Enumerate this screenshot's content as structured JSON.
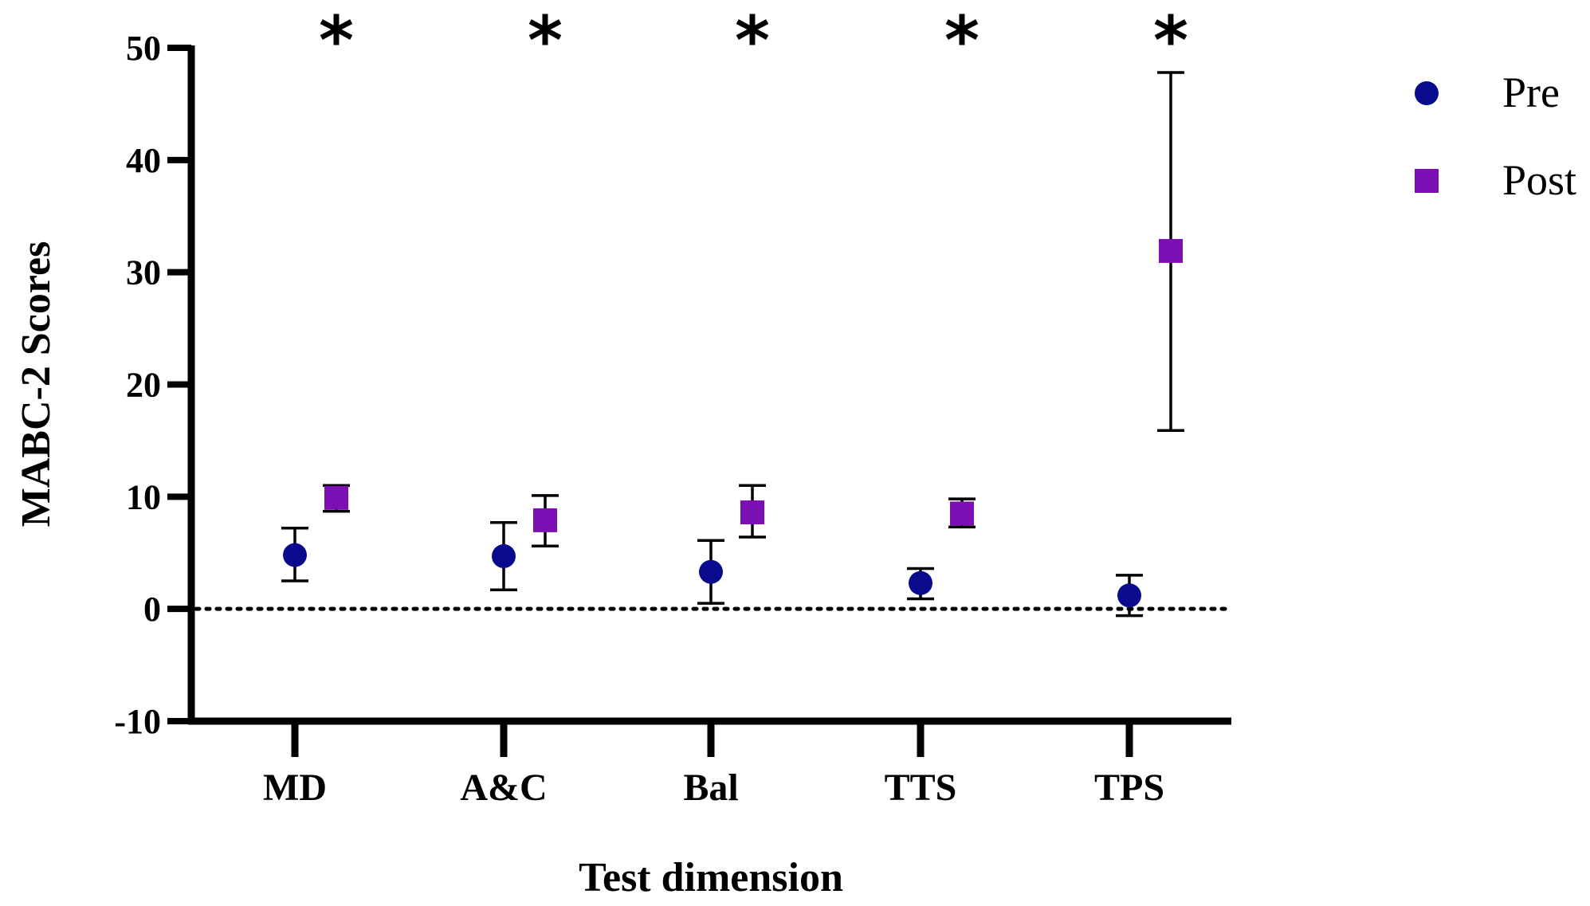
{
  "chart_data": {
    "type": "scatter",
    "xlabel": "Test dimension",
    "ylabel": "MABC-2 Scores",
    "ylim": [
      -10,
      50
    ],
    "yticks": [
      50,
      40,
      30,
      20,
      10,
      0,
      -10
    ],
    "ytick_labels": [
      "50",
      "40",
      "30",
      "20",
      "10",
      "0",
      "-10"
    ],
    "categories": [
      "MD",
      "A&C",
      "Bal",
      "TTS",
      "TPS"
    ],
    "reference_line": 0,
    "significance_marks": [
      "*",
      "*",
      "*",
      "*",
      "*"
    ],
    "series": [
      {
        "name": "Pre",
        "marker": "circle",
        "color": "#0a0a8c",
        "values": [
          4.8,
          4.7,
          3.3,
          2.3,
          1.2
        ],
        "err_low": [
          2.5,
          1.7,
          0.5,
          0.9,
          -0.6
        ],
        "err_high": [
          7.2,
          7.7,
          6.1,
          3.6,
          3.0
        ]
      },
      {
        "name": "Post",
        "marker": "square",
        "color": "#7c0fb3",
        "values": [
          9.9,
          7.9,
          8.6,
          8.5,
          31.9
        ],
        "err_low": [
          8.7,
          5.6,
          6.4,
          7.3,
          15.9
        ],
        "err_high": [
          11.0,
          10.1,
          11.0,
          9.8,
          47.8
        ]
      }
    ],
    "legend": {
      "position": "top-right",
      "entries": [
        "Pre",
        "Post"
      ]
    }
  }
}
